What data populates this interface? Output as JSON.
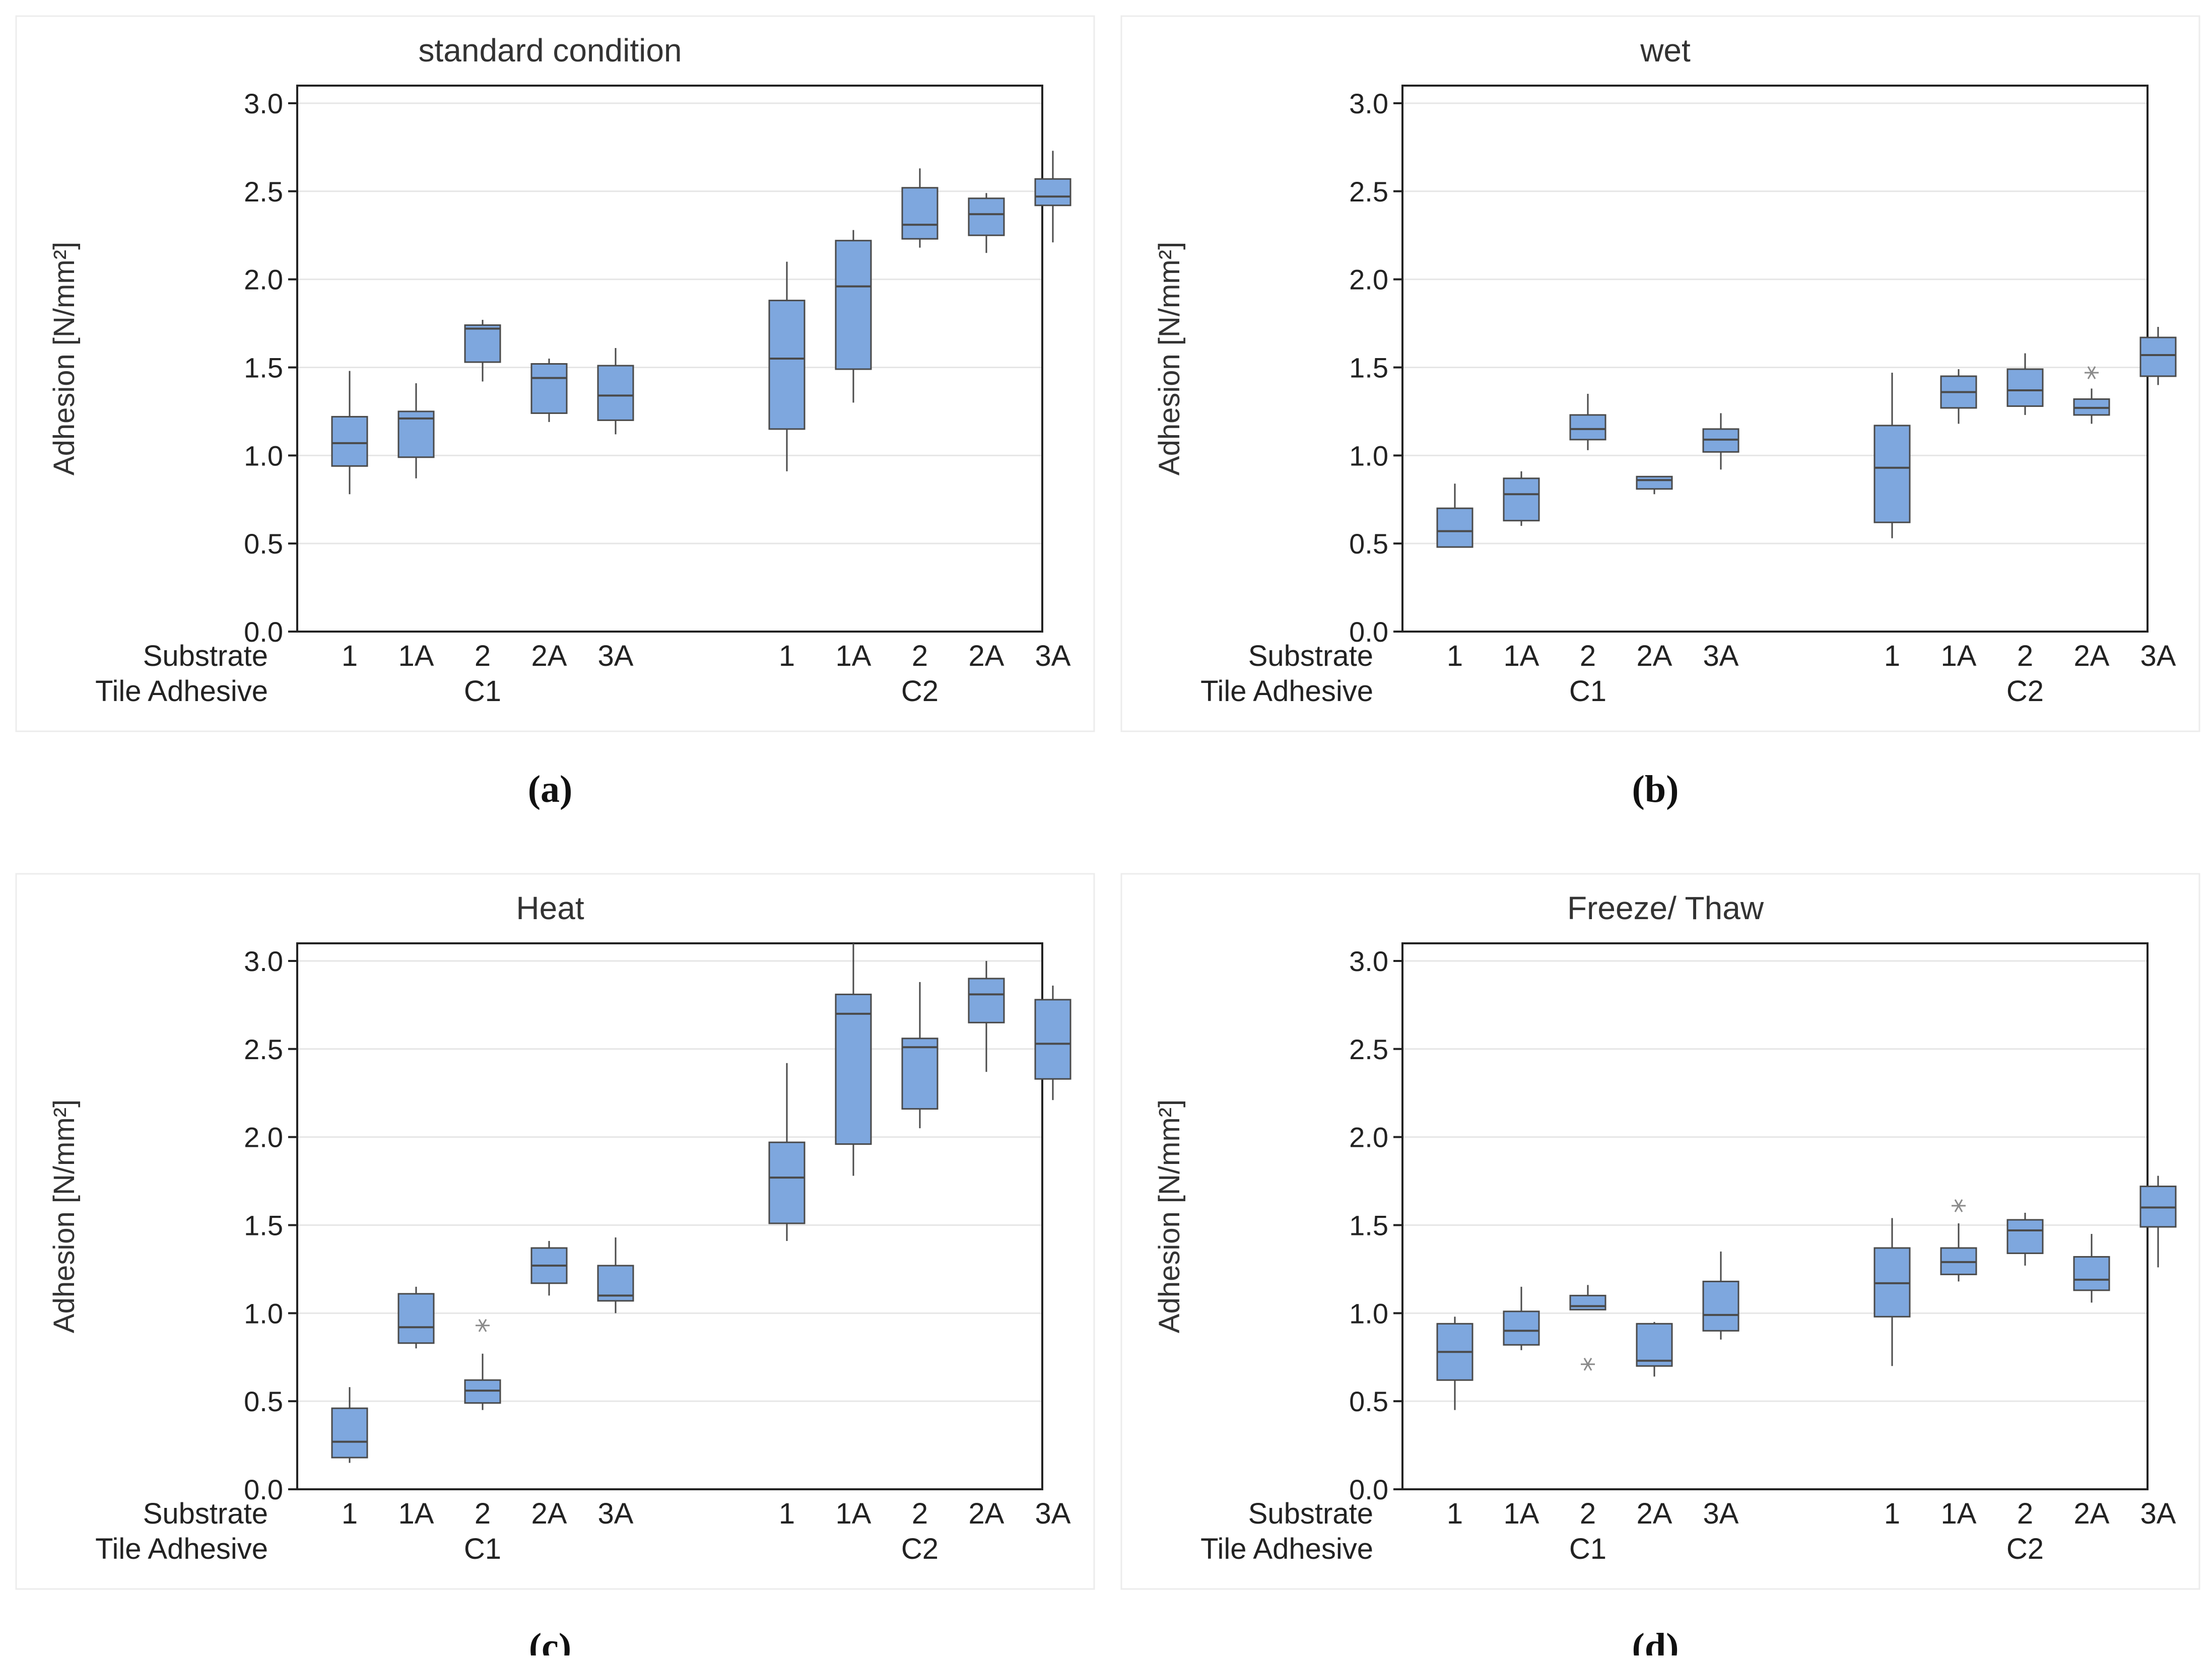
{
  "figure": {
    "y_axis_label": "Adhesion [N/mm²]",
    "row_labels": [
      "Substrate",
      "Tile Adhesive"
    ],
    "group_labels": [
      "C1",
      "C2"
    ],
    "substrate_labels": [
      "1",
      "1A",
      "2",
      "2A",
      "3A",
      "1",
      "1A",
      "2",
      "2A",
      "3A"
    ],
    "y_ticks": [
      "0.0",
      "0.5",
      "1.0",
      "1.5",
      "2.0",
      "2.5",
      "3.0"
    ],
    "colors": {
      "box_fill": "#7ea7de",
      "box_stroke": "#4a4a4a",
      "grid": "#e6e6e6",
      "outlier": "#8a8a8a"
    }
  },
  "chart_data": [
    {
      "type": "box",
      "panel_label": "(a)",
      "title": "standard condition",
      "ylabel": "Adhesion [N/mm²]",
      "ylim": [
        0,
        3.1
      ],
      "categories": [
        "1",
        "1A",
        "2",
        "2A",
        "3A",
        "1",
        "1A",
        "2",
        "2A",
        "3A"
      ],
      "groups": [
        "C1",
        "C2"
      ],
      "boxes": [
        {
          "group": "C1",
          "substrate": "1",
          "whisker_low": 0.78,
          "q1": 0.94,
          "median": 1.07,
          "q3": 1.22,
          "whisker_high": 1.48
        },
        {
          "group": "C1",
          "substrate": "1A",
          "whisker_low": 0.87,
          "q1": 0.99,
          "median": 1.21,
          "q3": 1.25,
          "whisker_high": 1.41
        },
        {
          "group": "C1",
          "substrate": "2",
          "whisker_low": 1.42,
          "q1": 1.53,
          "median": 1.72,
          "q3": 1.74,
          "whisker_high": 1.77
        },
        {
          "group": "C1",
          "substrate": "2A",
          "whisker_low": 1.19,
          "q1": 1.24,
          "median": 1.44,
          "q3": 1.52,
          "whisker_high": 1.55
        },
        {
          "group": "C1",
          "substrate": "3A",
          "whisker_low": 1.12,
          "q1": 1.2,
          "median": 1.34,
          "q3": 1.51,
          "whisker_high": 1.61
        },
        {
          "group": "C2",
          "substrate": "1",
          "whisker_low": 0.91,
          "q1": 1.15,
          "median": 1.55,
          "q3": 1.88,
          "whisker_high": 2.1
        },
        {
          "group": "C2",
          "substrate": "1A",
          "whisker_low": 1.3,
          "q1": 1.49,
          "median": 1.96,
          "q3": 2.22,
          "whisker_high": 2.28
        },
        {
          "group": "C2",
          "substrate": "2",
          "whisker_low": 2.18,
          "q1": 2.23,
          "median": 2.31,
          "q3": 2.52,
          "whisker_high": 2.63
        },
        {
          "group": "C2",
          "substrate": "2A",
          "whisker_low": 2.15,
          "q1": 2.25,
          "median": 2.37,
          "q3": 2.46,
          "whisker_high": 2.49
        },
        {
          "group": "C2",
          "substrate": "3A",
          "whisker_low": 2.21,
          "q1": 2.42,
          "median": 2.47,
          "q3": 2.57,
          "whisker_high": 2.73
        }
      ],
      "outliers": []
    },
    {
      "type": "box",
      "panel_label": "(b)",
      "title": "wet",
      "ylabel": "Adhesion [N/mm²]",
      "ylim": [
        0,
        3.1
      ],
      "categories": [
        "1",
        "1A",
        "2",
        "2A",
        "3A",
        "1",
        "1A",
        "2",
        "2A",
        "3A"
      ],
      "groups": [
        "C1",
        "C2"
      ],
      "boxes": [
        {
          "group": "C1",
          "substrate": "1",
          "whisker_low": 0.48,
          "q1": 0.48,
          "median": 0.57,
          "q3": 0.7,
          "whisker_high": 0.84
        },
        {
          "group": "C1",
          "substrate": "1A",
          "whisker_low": 0.6,
          "q1": 0.63,
          "median": 0.78,
          "q3": 0.87,
          "whisker_high": 0.91
        },
        {
          "group": "C1",
          "substrate": "2",
          "whisker_low": 1.03,
          "q1": 1.09,
          "median": 1.15,
          "q3": 1.23,
          "whisker_high": 1.35
        },
        {
          "group": "C1",
          "substrate": "2A",
          "whisker_low": 0.78,
          "q1": 0.81,
          "median": 0.86,
          "q3": 0.88,
          "whisker_high": 0.88
        },
        {
          "group": "C1",
          "substrate": "3A",
          "whisker_low": 0.92,
          "q1": 1.02,
          "median": 1.09,
          "q3": 1.15,
          "whisker_high": 1.24
        },
        {
          "group": "C2",
          "substrate": "1",
          "whisker_low": 0.53,
          "q1": 0.62,
          "median": 0.93,
          "q3": 1.17,
          "whisker_high": 1.47
        },
        {
          "group": "C2",
          "substrate": "1A",
          "whisker_low": 1.18,
          "q1": 1.27,
          "median": 1.36,
          "q3": 1.45,
          "whisker_high": 1.49
        },
        {
          "group": "C2",
          "substrate": "2",
          "whisker_low": 1.23,
          "q1": 1.28,
          "median": 1.37,
          "q3": 1.49,
          "whisker_high": 1.58
        },
        {
          "group": "C2",
          "substrate": "2A",
          "whisker_low": 1.18,
          "q1": 1.23,
          "median": 1.27,
          "q3": 1.32,
          "whisker_high": 1.38
        },
        {
          "group": "C2",
          "substrate": "3A",
          "whisker_low": 1.4,
          "q1": 1.45,
          "median": 1.57,
          "q3": 1.67,
          "whisker_high": 1.73
        }
      ],
      "outliers": [
        {
          "index": 8,
          "value": 1.47
        }
      ]
    },
    {
      "type": "box",
      "panel_label": "(c)",
      "title": "Heat",
      "ylabel": "Adhesion [N/mm²]",
      "ylim": [
        0,
        3.1
      ],
      "categories": [
        "1",
        "1A",
        "2",
        "2A",
        "3A",
        "1",
        "1A",
        "2",
        "2A",
        "3A"
      ],
      "groups": [
        "C1",
        "C2"
      ],
      "boxes": [
        {
          "group": "C1",
          "substrate": "1",
          "whisker_low": 0.15,
          "q1": 0.18,
          "median": 0.27,
          "q3": 0.46,
          "whisker_high": 0.58
        },
        {
          "group": "C1",
          "substrate": "1A",
          "whisker_low": 0.8,
          "q1": 0.83,
          "median": 0.92,
          "q3": 1.11,
          "whisker_high": 1.15
        },
        {
          "group": "C1",
          "substrate": "2",
          "whisker_low": 0.45,
          "q1": 0.49,
          "median": 0.56,
          "q3": 0.62,
          "whisker_high": 0.77
        },
        {
          "group": "C1",
          "substrate": "2A",
          "whisker_low": 1.1,
          "q1": 1.17,
          "median": 1.27,
          "q3": 1.37,
          "whisker_high": 1.41
        },
        {
          "group": "C1",
          "substrate": "3A",
          "whisker_low": 1.0,
          "q1": 1.07,
          "median": 1.1,
          "q3": 1.27,
          "whisker_high": 1.43
        },
        {
          "group": "C2",
          "substrate": "1",
          "whisker_low": 1.41,
          "q1": 1.51,
          "median": 1.77,
          "q3": 1.97,
          "whisker_high": 2.42
        },
        {
          "group": "C2",
          "substrate": "1A",
          "whisker_low": 1.78,
          "q1": 1.96,
          "median": 2.7,
          "q3": 2.81,
          "whisker_high": 3.1
        },
        {
          "group": "C2",
          "substrate": "2",
          "whisker_low": 2.05,
          "q1": 2.16,
          "median": 2.51,
          "q3": 2.56,
          "whisker_high": 2.88
        },
        {
          "group": "C2",
          "substrate": "2A",
          "whisker_low": 2.37,
          "q1": 2.65,
          "median": 2.81,
          "q3": 2.9,
          "whisker_high": 3.0
        },
        {
          "group": "C2",
          "substrate": "3A",
          "whisker_low": 2.21,
          "q1": 2.33,
          "median": 2.53,
          "q3": 2.78,
          "whisker_high": 2.86
        }
      ],
      "outliers": [
        {
          "index": 2,
          "value": 0.93
        }
      ]
    },
    {
      "type": "box",
      "panel_label": "(d)",
      "title": "Freeze/ Thaw",
      "ylabel": "Adhesion [N/mm²]",
      "ylim": [
        0,
        3.1
      ],
      "categories": [
        "1",
        "1A",
        "2",
        "2A",
        "3A",
        "1",
        "1A",
        "2",
        "2A",
        "3A"
      ],
      "groups": [
        "C1",
        "C2"
      ],
      "boxes": [
        {
          "group": "C1",
          "substrate": "1",
          "whisker_low": 0.45,
          "q1": 0.62,
          "median": 0.78,
          "q3": 0.94,
          "whisker_high": 0.98
        },
        {
          "group": "C1",
          "substrate": "1A",
          "whisker_low": 0.79,
          "q1": 0.82,
          "median": 0.9,
          "q3": 1.01,
          "whisker_high": 1.15
        },
        {
          "group": "C1",
          "substrate": "2",
          "whisker_low": 1.02,
          "q1": 1.02,
          "median": 1.04,
          "q3": 1.1,
          "whisker_high": 1.16
        },
        {
          "group": "C1",
          "substrate": "2A",
          "whisker_low": 0.64,
          "q1": 0.7,
          "median": 0.73,
          "q3": 0.94,
          "whisker_high": 0.95
        },
        {
          "group": "C1",
          "substrate": "3A",
          "whisker_low": 0.85,
          "q1": 0.9,
          "median": 0.99,
          "q3": 1.18,
          "whisker_high": 1.35
        },
        {
          "group": "C2",
          "substrate": "1",
          "whisker_low": 0.7,
          "q1": 0.98,
          "median": 1.17,
          "q3": 1.37,
          "whisker_high": 1.54
        },
        {
          "group": "C2",
          "substrate": "1A",
          "whisker_low": 1.18,
          "q1": 1.22,
          "median": 1.29,
          "q3": 1.37,
          "whisker_high": 1.51
        },
        {
          "group": "C2",
          "substrate": "2",
          "whisker_low": 1.27,
          "q1": 1.34,
          "median": 1.47,
          "q3": 1.53,
          "whisker_high": 1.57
        },
        {
          "group": "C2",
          "substrate": "2A",
          "whisker_low": 1.06,
          "q1": 1.13,
          "median": 1.19,
          "q3": 1.32,
          "whisker_high": 1.45
        },
        {
          "group": "C2",
          "substrate": "3A",
          "whisker_low": 1.26,
          "q1": 1.49,
          "median": 1.6,
          "q3": 1.72,
          "whisker_high": 1.78
        }
      ],
      "outliers": [
        {
          "index": 2,
          "value": 0.71
        },
        {
          "index": 6,
          "value": 1.61
        }
      ]
    }
  ]
}
